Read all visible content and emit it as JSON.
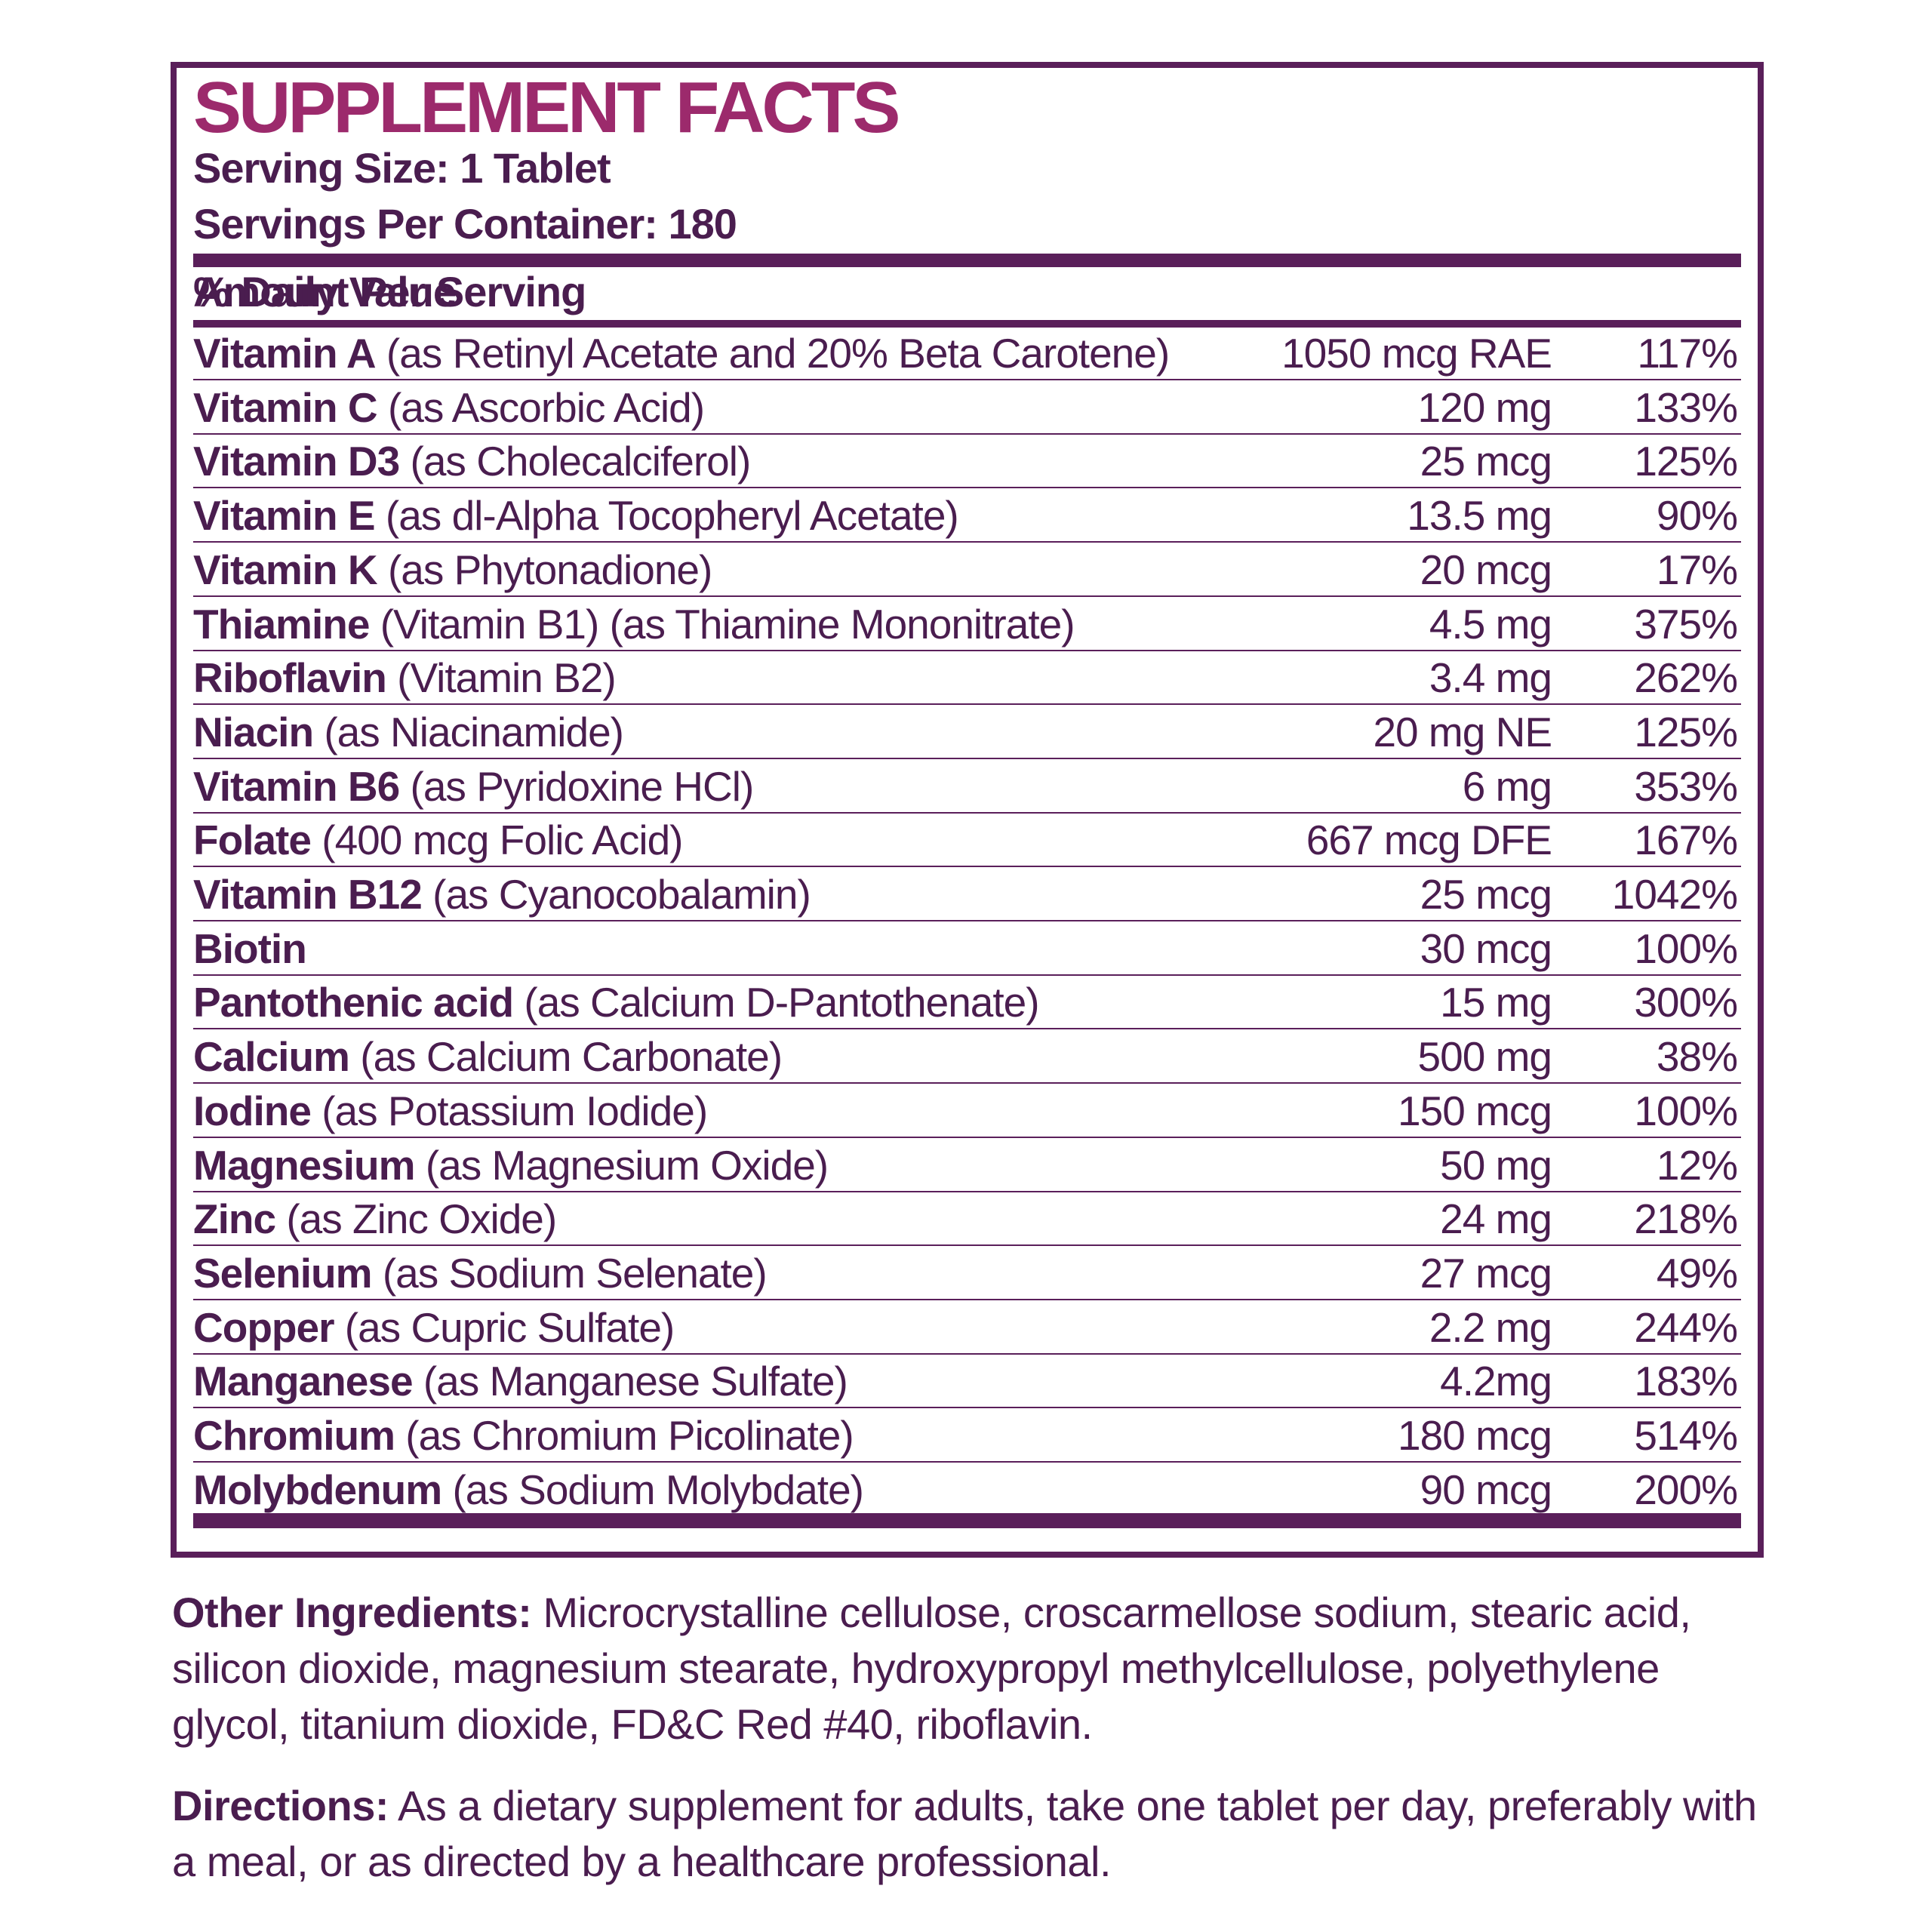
{
  "header": {
    "title": "SUPPLEMENT FACTS",
    "serving_size": "Serving Size: 1 Tablet",
    "servings_per_container": "Servings Per Container: 180"
  },
  "columns": {
    "amount_per_serving": "Amount Per Serving",
    "daily_value": "% Daily Value"
  },
  "rows": [
    {
      "name": "Vitamin A",
      "source": "(as Retinyl Acetate and 20% Beta Carotene)",
      "amount": "1050 mcg RAE",
      "dv": "117%"
    },
    {
      "name": "Vitamin C",
      "source": "(as Ascorbic Acid)",
      "amount": "120 mg",
      "dv": "133%"
    },
    {
      "name": "Vitamin D3",
      "source": "(as Cholecalciferol)",
      "amount": "25 mcg",
      "dv": "125%"
    },
    {
      "name": "Vitamin E",
      "source": "(as dl-Alpha Tocopheryl Acetate)",
      "amount": "13.5 mg",
      "dv": "90%"
    },
    {
      "name": "Vitamin K",
      "source": "(as Phytonadione)",
      "amount": "20 mcg",
      "dv": "17%"
    },
    {
      "name": "Thiamine",
      "source": "(Vitamin B1) (as Thiamine Mononitrate)",
      "amount": "4.5 mg",
      "dv": "375%"
    },
    {
      "name": "Riboflavin",
      "source": "(Vitamin B2)",
      "amount": "3.4 mg",
      "dv": "262%"
    },
    {
      "name": "Niacin",
      "source": "(as Niacinamide)",
      "amount": "20 mg NE",
      "dv": "125%"
    },
    {
      "name": "Vitamin B6",
      "source": "(as Pyridoxine HCl)",
      "amount": "6 mg",
      "dv": "353%"
    },
    {
      "name": "Folate",
      "source": "(400 mcg Folic Acid)",
      "amount": "667 mcg DFE",
      "dv": "167%"
    },
    {
      "name": "Vitamin B12",
      "source": "(as Cyanocobalamin)",
      "amount": "25 mcg",
      "dv": "1042%"
    },
    {
      "name": "Biotin",
      "amount": "30 mcg",
      "dv": "100%"
    },
    {
      "name": "Pantothenic acid",
      "source": "(as Calcium D-Pantothenate)",
      "amount": "15 mg",
      "dv": "300%"
    },
    {
      "name": "Calcium",
      "source": "(as Calcium Carbonate)",
      "amount": "500 mg",
      "dv": "38%"
    },
    {
      "name": "Iodine",
      "source": "(as Potassium Iodide)",
      "amount": "150 mcg",
      "dv": "100%"
    },
    {
      "name": "Magnesium",
      "source": "(as Magnesium Oxide)",
      "amount": "50 mg",
      "dv": "12%"
    },
    {
      "name": "Zinc",
      "source": "(as Zinc Oxide)",
      "amount": "24 mg",
      "dv": "218%"
    },
    {
      "name": "Selenium",
      "source": "(as Sodium Selenate)",
      "amount": "27 mcg",
      "dv": "49%"
    },
    {
      "name": "Copper",
      "source": "(as Cupric Sulfate)",
      "amount": "2.2 mg",
      "dv": "244%"
    },
    {
      "name": "Manganese",
      "source": "(as Manganese Sulfate)",
      "amount": "4.2mg",
      "dv": "183%"
    },
    {
      "name": "Chromium",
      "source": "(as Chromium Picolinate)",
      "amount": "180 mcg",
      "dv": "514%"
    },
    {
      "name": "Molybdenum",
      "source": "(as Sodium Molybdate)",
      "amount": "90 mcg",
      "dv": "200%"
    }
  ],
  "footer": {
    "other_ingredients_label": "Other Ingredients:",
    "other_ingredients": "Microcrystalline cellulose, croscarmellose sodium, stearic acid, silicon dioxide, magnesium stearate, hydroxypropyl methylcellulose, polyethylene glycol, titanium dioxide, FD&C Red #40, riboflavin.",
    "directions_label": "Directions:",
    "directions": "As a dietary supplement for adults, take one tablet per day, preferably with a meal, or as directed by a healthcare professional."
  }
}
